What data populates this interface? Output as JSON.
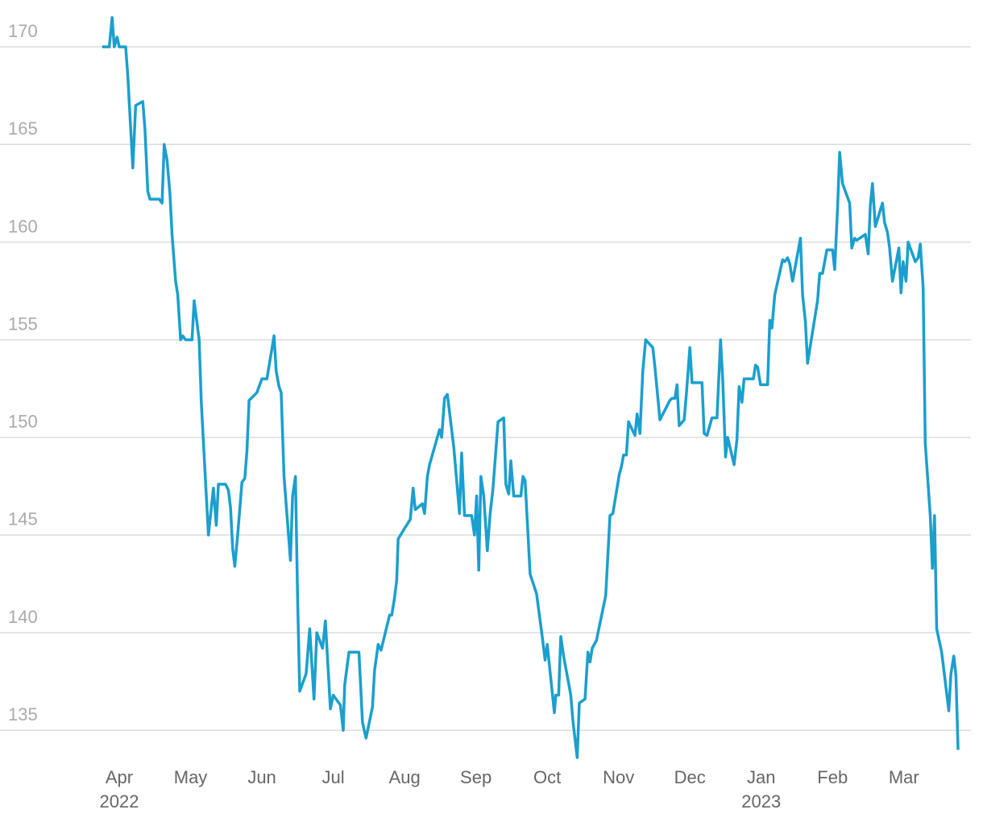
{
  "chart_data": {
    "type": "line",
    "color": "#1a9fce",
    "grid": true,
    "ylim": [
      133.4,
      172.4
    ],
    "yticks": [
      135,
      140,
      145,
      150,
      155,
      160,
      165,
      170
    ],
    "xlim": [
      -1.672,
      11.94
    ],
    "xticks": [
      {
        "value": 0,
        "label": "Apr"
      },
      {
        "value": 1,
        "label": "May"
      },
      {
        "value": 2,
        "label": "Jun"
      },
      {
        "value": 3,
        "label": "Jul"
      },
      {
        "value": 4,
        "label": "Aug"
      },
      {
        "value": 5,
        "label": "Sep"
      },
      {
        "value": 6,
        "label": "Oct"
      },
      {
        "value": 7,
        "label": "Nov"
      },
      {
        "value": 8,
        "label": "Dec"
      },
      {
        "value": 9,
        "label": "Jan"
      },
      {
        "value": 10,
        "label": "Feb"
      },
      {
        "value": 11,
        "label": "Mar"
      }
    ],
    "xtick_years": [
      {
        "value": 0,
        "label": "2022"
      },
      {
        "value": 9,
        "label": "2023"
      }
    ],
    "x": [
      -0.24,
      -0.14,
      -0.1,
      -0.07,
      -0.03,
      0,
      0.09,
      0.12,
      0.19,
      0.23,
      0.33,
      0.36,
      0.4,
      0.43,
      0.56,
      0.6,
      0.63,
      0.67,
      0.71,
      0.74,
      0.79,
      0.82,
      0.86,
      0.89,
      0.93,
      1.02,
      1.05,
      1.12,
      1.15,
      1.25,
      1.32,
      1.36,
      1.39,
      1.49,
      1.53,
      1.56,
      1.59,
      1.62,
      1.66,
      1.72,
      1.76,
      1.79,
      1.82,
      1.85,
      1.93,
      2.0,
      2.07,
      2.17,
      2.2,
      2.24,
      2.27,
      2.31,
      2.4,
      2.43,
      2.47,
      2.5,
      2.53,
      2.62,
      2.67,
      2.73,
      2.77,
      2.85,
      2.89,
      2.96,
      3.0,
      3.1,
      3.14,
      3.16,
      3.22,
      3.36,
      3.41,
      3.46,
      3.55,
      3.58,
      3.63,
      3.67,
      3.79,
      3.82,
      3.86,
      3.89,
      3.91,
      4.01,
      4.08,
      4.12,
      4.15,
      4.25,
      4.28,
      4.32,
      4.35,
      4.49,
      4.52,
      4.56,
      4.6,
      4.69,
      4.77,
      4.8,
      4.84,
      4.94,
      4.98,
      5.01,
      5.04,
      5.07,
      5.11,
      5.16,
      5.2,
      5.24,
      5.31,
      5.39,
      5.42,
      5.46,
      5.49,
      5.53,
      5.63,
      5.66,
      5.69,
      5.76,
      5.85,
      5.93,
      5.97,
      6.0,
      6.1,
      6.12,
      6.16,
      6.19,
      6.23,
      6.33,
      6.36,
      6.42,
      6.45,
      6.53,
      6.57,
      6.6,
      6.63,
      6.69,
      6.82,
      6.88,
      6.92,
      7.01,
      7.04,
      7.07,
      7.11,
      7.14,
      7.23,
      7.26,
      7.3,
      7.34,
      7.38,
      7.48,
      7.51,
      7.58,
      7.72,
      7.75,
      7.79,
      7.82,
      7.85,
      7.92,
      7.95,
      8.0,
      8.03,
      8.17,
      8.2,
      8.24,
      8.31,
      8.38,
      8.43,
      8.46,
      8.5,
      8.53,
      8.62,
      8.66,
      8.69,
      8.73,
      8.76,
      8.89,
      8.92,
      8.95,
      8.99,
      9.09,
      9.12,
      9.15,
      9.19,
      9.3,
      9.33,
      9.37,
      9.4,
      9.44,
      9.55,
      9.58,
      9.62,
      9.65,
      9.68,
      9.79,
      9.82,
      9.86,
      9.92,
      10.0,
      10.03,
      10.07,
      10.1,
      10.14,
      10.24,
      10.27,
      10.31,
      10.34,
      10.38,
      10.46,
      10.5,
      10.53,
      10.56,
      10.6,
      10.7,
      10.73,
      10.77,
      10.8,
      10.84,
      10.93,
      10.96,
      10.99,
      11.03,
      11.06,
      11.16,
      11.2,
      11.23,
      11.27,
      11.3,
      11.37,
      11.4,
      11.43,
      11.46,
      11.53,
      11.63,
      11.66,
      11.7,
      11.73,
      11.76
    ],
    "values": [
      170,
      170,
      171.5,
      170,
      170.5,
      170,
      170,
      168.5,
      163.8,
      167.0,
      167.2,
      165.8,
      162.6,
      162.2,
      162.2,
      162.0,
      165.0,
      164.2,
      162.5,
      160.4,
      158.0,
      157.3,
      155.0,
      155.2,
      155.0,
      155.0,
      157.0,
      155.0,
      151.8,
      145.0,
      147.4,
      145.5,
      147.6,
      147.6,
      147.3,
      146.4,
      144.3,
      143.4,
      145.0,
      147.7,
      147.9,
      149.3,
      151.9,
      152.0,
      152.3,
      153.0,
      153.0,
      155.2,
      153.4,
      152.6,
      152.3,
      148.0,
      143.7,
      147.0,
      148.0,
      141.8,
      137.0,
      137.9,
      140.2,
      136.6,
      140.0,
      139.2,
      140.6,
      136.1,
      136.8,
      136.3,
      135.0,
      137.3,
      139.0,
      139.0,
      135.4,
      134.6,
      136.2,
      138.1,
      139.4,
      139.1,
      140.9,
      140.9,
      141.8,
      142.7,
      144.8,
      145.4,
      145.8,
      147.4,
      146.3,
      146.6,
      146.1,
      148.0,
      148.6,
      150.4,
      150.0,
      152.0,
      152.2,
      149.5,
      146.1,
      149.2,
      146.0,
      146.0,
      145.0,
      147.0,
      143.2,
      148.0,
      147.0,
      144.2,
      146.1,
      147.4,
      150.8,
      151.0,
      147.6,
      147.1,
      148.8,
      147.0,
      147.0,
      148.0,
      147.8,
      143.0,
      142.0,
      139.8,
      138.6,
      139.4,
      135.9,
      136.8,
      136.8,
      139.8,
      138.8,
      136.8,
      135.5,
      133.6,
      136.4,
      136.6,
      139.0,
      138.5,
      139.2,
      139.6,
      141.9,
      146.0,
      146.1,
      148.1,
      148.5,
      149.1,
      149.1,
      150.8,
      150.1,
      151.2,
      150.2,
      153.4,
      155.0,
      154.6,
      153.6,
      150.9,
      151.9,
      152.0,
      152.0,
      152.7,
      150.6,
      150.9,
      152.2,
      154.6,
      152.8,
      152.8,
      150.2,
      150.1,
      151.0,
      151.0,
      155.0,
      153.0,
      149.0,
      150.0,
      148.6,
      149.9,
      152.6,
      151.8,
      153.0,
      153.0,
      153.7,
      153.6,
      152.7,
      152.7,
      156.0,
      155.6,
      157.3,
      159.1,
      159.0,
      159.2,
      158.9,
      158.0,
      160.2,
      157.3,
      155.9,
      153.8,
      154.5,
      157.0,
      158.4,
      158.4,
      159.6,
      159.6,
      158.6,
      161.7,
      164.6,
      163.0,
      162.0,
      159.7,
      160.2,
      160.1,
      160.2,
      160.4,
      159.4,
      161.9,
      163.0,
      160.8,
      162.0,
      161.0,
      160.5,
      159.7,
      158.0,
      159.7,
      157.4,
      159.0,
      158.0,
      160.0,
      159.0,
      159.2,
      159.9,
      157.7,
      149.7,
      146.0,
      143.3,
      146.0,
      140.2,
      139.0,
      136.0,
      137.9,
      138.8,
      137.8,
      134.0
    ]
  }
}
